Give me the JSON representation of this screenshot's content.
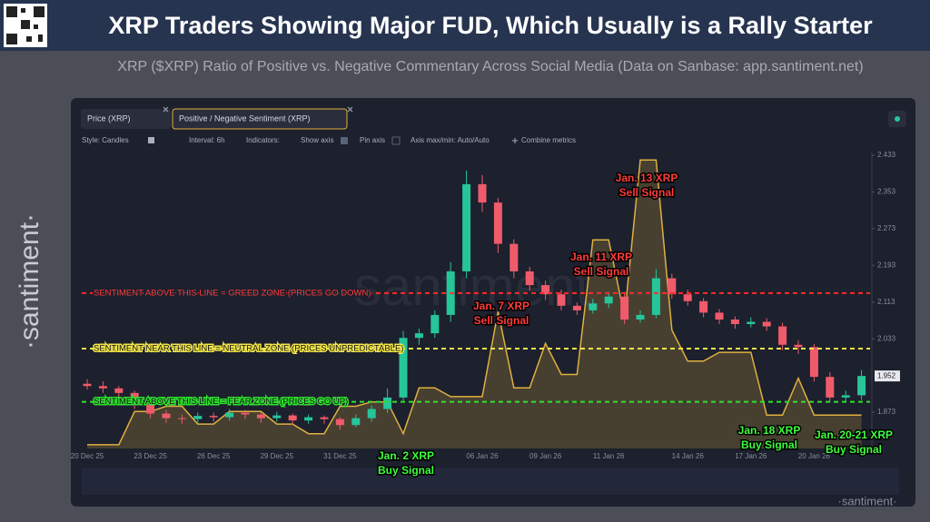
{
  "header": {
    "title": "XRP Traders Showing Major FUD, Which Usually is a Rally Starter",
    "subtitle": "XRP ($XRP) Ratio of Positive vs. Negative Commentary Across Social Media (Data on Sanbase: app.santiment.net)"
  },
  "branding": {
    "side": "·santiment·",
    "center": "santiment"
  },
  "toolbar": {
    "style": "Style: Candles",
    "interval": "Interval: 6h",
    "indicators": "Indicators:",
    "show_axis": "Show axis",
    "pin_axis": "Pin axis",
    "axis_range": "Axis max/min: Auto/Auto",
    "combine": "Combine metrics"
  },
  "chart_data": {
    "type": "candlestick",
    "categories": [
      "20 Dec 25",
      null,
      null,
      null,
      "23 Dec 25",
      null,
      null,
      null,
      "26 Dec 25",
      null,
      null,
      null,
      "29 Dec 25",
      null,
      null,
      null,
      "31 Dec 25",
      null,
      null,
      null,
      null,
      null,
      null,
      null,
      null,
      "06 Jan 26",
      null,
      null,
      null,
      "09 Jan 26",
      null,
      null,
      null,
      "11 Jan 26",
      null,
      null,
      null,
      null,
      "14 Jan 26",
      null,
      null,
      null,
      "17 Jan 26",
      null,
      null,
      null,
      "20 Jan 26",
      null,
      null,
      null
    ],
    "series": [
      {
        "name": "Price (XRP)",
        "up_color": "#26c59a",
        "down_color": "#ef5b6b",
        "open": [
          1.935,
          1.93,
          1.925,
          1.915,
          1.89,
          1.87,
          1.86,
          1.858,
          1.865,
          1.862,
          1.872,
          1.868,
          1.86,
          1.866,
          1.855,
          1.862,
          1.858,
          1.845,
          1.86,
          1.88,
          1.905,
          2.035,
          2.045,
          2.085,
          2.18,
          2.37,
          2.33,
          2.24,
          2.18,
          2.15,
          2.13,
          2.105,
          2.095,
          2.11,
          2.125,
          2.075,
          2.085,
          2.165,
          2.13,
          2.115,
          2.09,
          2.075,
          2.065,
          2.07,
          2.06,
          2.02,
          2.015,
          1.95,
          1.905,
          1.91
        ],
        "high": [
          1.945,
          1.94,
          1.93,
          1.92,
          1.895,
          1.878,
          1.868,
          1.872,
          1.872,
          1.88,
          1.878,
          1.872,
          1.874,
          1.87,
          1.868,
          1.866,
          1.862,
          1.868,
          1.888,
          1.925,
          2.05,
          2.055,
          2.095,
          2.2,
          2.4,
          2.39,
          2.34,
          2.25,
          2.19,
          2.16,
          2.14,
          2.112,
          2.12,
          2.135,
          2.135,
          2.095,
          2.185,
          2.175,
          2.14,
          2.122,
          2.098,
          2.082,
          2.08,
          2.078,
          2.068,
          2.03,
          2.022,
          1.96,
          1.92,
          1.965
        ],
        "low": [
          1.922,
          1.915,
          1.905,
          1.88,
          1.86,
          1.85,
          1.848,
          1.85,
          1.852,
          1.855,
          1.858,
          1.85,
          1.852,
          1.845,
          1.848,
          1.848,
          1.835,
          1.84,
          1.852,
          1.872,
          1.898,
          2.02,
          2.035,
          2.07,
          2.165,
          2.31,
          2.22,
          2.165,
          2.138,
          2.118,
          2.095,
          2.085,
          2.088,
          2.1,
          2.065,
          2.068,
          2.078,
          2.12,
          2.105,
          2.08,
          2.065,
          2.055,
          2.058,
          2.05,
          2.008,
          2.0,
          1.94,
          1.895,
          1.895,
          1.9
        ],
        "close": [
          1.93,
          1.925,
          1.915,
          1.89,
          1.87,
          1.86,
          1.858,
          1.865,
          1.862,
          1.872,
          1.868,
          1.86,
          1.866,
          1.855,
          1.862,
          1.858,
          1.845,
          1.86,
          1.88,
          1.905,
          2.035,
          2.045,
          2.085,
          2.18,
          2.37,
          2.33,
          2.24,
          2.18,
          2.15,
          2.13,
          2.105,
          2.095,
          2.11,
          2.125,
          2.075,
          2.085,
          2.165,
          2.13,
          2.115,
          2.09,
          2.075,
          2.065,
          2.07,
          2.06,
          2.02,
          2.015,
          1.95,
          1.905,
          1.91,
          1.952
        ]
      },
      {
        "name": "Positive / Negative Sentiment (XRP)",
        "color": "#e0b040",
        "axis": "y2",
        "values": [
          0.05,
          0.05,
          0.05,
          0.5,
          0.5,
          0.57,
          0.57,
          0.33,
          0.33,
          0.5,
          0.5,
          0.5,
          0.33,
          0.33,
          0.2,
          0.2,
          0.57,
          0.57,
          0.63,
          0.63,
          0.2,
          0.82,
          0.82,
          0.7,
          0.7,
          0.7,
          1.85,
          0.82,
          0.82,
          1.42,
          1.0,
          1.0,
          2.82,
          2.82,
          1.78,
          3.9,
          3.9,
          1.6,
          1.18,
          1.18,
          1.3,
          1.3,
          1.3,
          0.45,
          0.45,
          0.95,
          0.45,
          0.45,
          0.45,
          0.45
        ]
      }
    ],
    "ylim": [
      1.794,
      2.439
    ],
    "yticks": [
      2.433,
      2.353,
      2.273,
      2.193,
      2.113,
      2.033,
      1.873
    ],
    "y2lim": [
      0,
      4
    ],
    "last_value": 1.952,
    "zones": [
      {
        "label": "SENTIMENT ABOVE THIS LINE = GREED ZONE (PRICES GO DOWN)",
        "value": 2.1,
        "color": "#ff2a2a",
        "text_color": "#ff3b3b"
      },
      {
        "label": "SENTIMENT NEAR THIS LINE = NEUTRAL ZONE (PRICES UNPREDICTABLE)",
        "value": 1.35,
        "color": "#f2e64a",
        "text_color": "#111111"
      },
      {
        "label": "SENTIMENT ABOVE THIS LINE = FEAR ZONE (PRICES GO UP)",
        "value": 0.63,
        "color": "#2fe02f",
        "text_color": "#111111"
      }
    ],
    "annotations": [
      {
        "lines": [
          "Jan. 2 XRP",
          "Buy Signal"
        ],
        "color": "#3dff3d"
      },
      {
        "lines": [
          "Jan. 7 XRP",
          "Sell Signal"
        ],
        "color": "#ff3b3b"
      },
      {
        "lines": [
          "Jan. 11 XRP",
          "Sell Signal"
        ],
        "color": "#ff3b3b"
      },
      {
        "lines": [
          "Jan. 13 XRP",
          "Sell Signal"
        ],
        "color": "#ff3b3b"
      },
      {
        "lines": [
          "Jan. 18 XRP",
          "Buy Signal"
        ],
        "color": "#3dff3d"
      },
      {
        "lines": [
          "Jan. 20-21 XRP",
          "Buy Signal"
        ],
        "color": "#3dff3d"
      }
    ]
  }
}
